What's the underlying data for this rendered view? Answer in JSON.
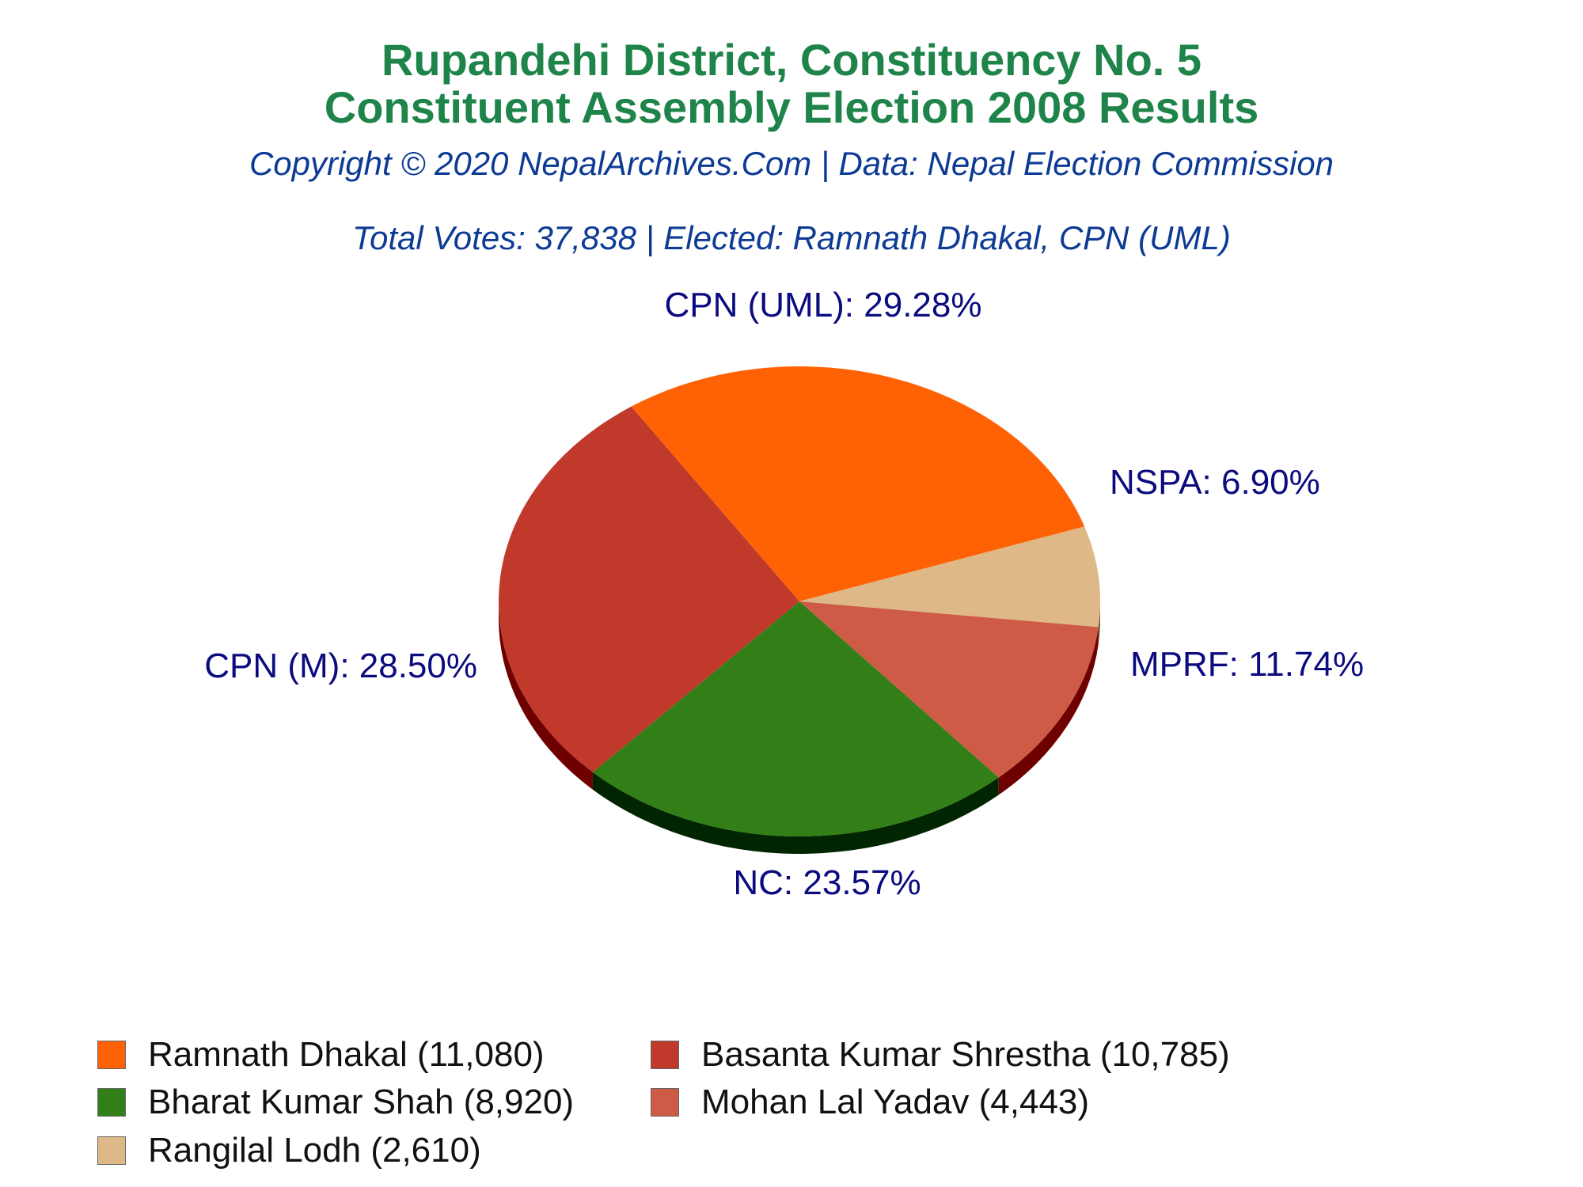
{
  "header": {
    "title_line1": "Rupandehi District, Constituency No. 5",
    "title_line2": "Constituent Assembly Election 2008 Results",
    "copyright": "Copyright © 2020 NepalArchives.Com | Data: Nepal Election Commission",
    "summary": "Total Votes: 37,838 | Elected: Ramnath Dhakal, CPN (UML)"
  },
  "colors": {
    "title": "#1e8449",
    "subtitle": "#0d3b94",
    "slice_label": "#0b0b80"
  },
  "chart_data": {
    "type": "pie",
    "total_votes": 37838,
    "slices": [
      {
        "party": "CPN (UML)",
        "percent": 29.28,
        "label": "CPN (UML): 29.28%",
        "color": "#ff6204",
        "side_color": "#7a2b00"
      },
      {
        "party": "NSPA",
        "percent": 6.9,
        "label": "NSPA: 6.90%",
        "color": "#dfb887",
        "side_color": "#6a4b25"
      },
      {
        "party": "MPRF",
        "percent": 11.74,
        "label": "MPRF: 11.74%",
        "color": "#cd5b45",
        "side_color": "#6e0000"
      },
      {
        "party": "NC",
        "percent": 23.57,
        "label": "NC: 23.57%",
        "color": "#327f17",
        "side_color": "#002500"
      },
      {
        "party": "CPN (M)",
        "percent": 28.5,
        "label": "CPN (M): 28.50%",
        "color": "#c0392b",
        "side_color": "#6e0000"
      }
    ],
    "legend": [
      {
        "label": "Ramnath Dhakal (11,080)",
        "candidate": "Ramnath Dhakal",
        "votes": 11080,
        "color": "#ff6204"
      },
      {
        "label": "Basanta Kumar Shrestha (10,785)",
        "candidate": "Basanta Kumar Shrestha",
        "votes": 10785,
        "color": "#c0392b"
      },
      {
        "label": "Bharat Kumar Shah (8,920)",
        "candidate": "Bharat Kumar Shah",
        "votes": 8920,
        "color": "#327f17"
      },
      {
        "label": "Mohan Lal Yadav (4,443)",
        "candidate": "Mohan Lal Yadav",
        "votes": 4443,
        "color": "#cd5b45"
      },
      {
        "label": "Rangilal Lodh (2,610)",
        "candidate": "Rangilal Lodh",
        "votes": 2610,
        "color": "#dfb887"
      }
    ],
    "legend_placement": "bottom"
  }
}
